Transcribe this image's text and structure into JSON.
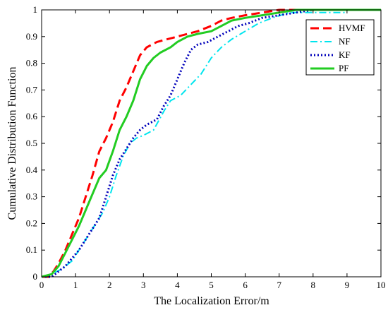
{
  "chart_data": {
    "type": "line",
    "title": "",
    "xlabel": "The Localization Error/m",
    "ylabel": "Cumulative Distribution Function",
    "xlim": [
      0,
      10
    ],
    "ylim": [
      0,
      1
    ],
    "xticks": [
      "0",
      "1",
      "2",
      "3",
      "4",
      "5",
      "6",
      "7",
      "8",
      "9",
      "10"
    ],
    "yticks": [
      "0",
      "0.1",
      "0.2",
      "0.3",
      "0.4",
      "0.5",
      "0.6",
      "0.7",
      "0.8",
      "0.9",
      "1"
    ],
    "grid": false,
    "legend": "top-right",
    "series": [
      {
        "name": "HVMF",
        "color": "#ff0000",
        "style": "dashed",
        "points": [
          [
            0,
            0
          ],
          [
            0.2,
            0
          ],
          [
            0.35,
            0.02
          ],
          [
            0.5,
            0.05
          ],
          [
            0.7,
            0.1
          ],
          [
            0.9,
            0.16
          ],
          [
            1.1,
            0.22
          ],
          [
            1.3,
            0.3
          ],
          [
            1.5,
            0.38
          ],
          [
            1.7,
            0.47
          ],
          [
            1.9,
            0.52
          ],
          [
            2.1,
            0.58
          ],
          [
            2.3,
            0.66
          ],
          [
            2.5,
            0.71
          ],
          [
            2.7,
            0.77
          ],
          [
            2.9,
            0.83
          ],
          [
            3.1,
            0.86
          ],
          [
            3.4,
            0.88
          ],
          [
            3.7,
            0.89
          ],
          [
            4.0,
            0.9
          ],
          [
            4.3,
            0.91
          ],
          [
            4.6,
            0.92
          ],
          [
            5.0,
            0.94
          ],
          [
            5.3,
            0.96
          ],
          [
            5.6,
            0.97
          ],
          [
            6.0,
            0.98
          ],
          [
            6.5,
            0.99
          ],
          [
            7.0,
            1.0
          ],
          [
            10,
            1.0
          ]
        ]
      },
      {
        "name": "NF",
        "color": "#00e5ee",
        "style": "dashdot",
        "points": [
          [
            0,
            0
          ],
          [
            0.3,
            0.01
          ],
          [
            0.6,
            0.03
          ],
          [
            0.9,
            0.06
          ],
          [
            1.2,
            0.12
          ],
          [
            1.5,
            0.18
          ],
          [
            1.8,
            0.24
          ],
          [
            2.0,
            0.3
          ],
          [
            2.2,
            0.38
          ],
          [
            2.4,
            0.45
          ],
          [
            2.6,
            0.5
          ],
          [
            2.8,
            0.52
          ],
          [
            3.0,
            0.53
          ],
          [
            3.3,
            0.55
          ],
          [
            3.6,
            0.62
          ],
          [
            3.8,
            0.66
          ],
          [
            4.1,
            0.68
          ],
          [
            4.4,
            0.72
          ],
          [
            4.7,
            0.76
          ],
          [
            5.0,
            0.82
          ],
          [
            5.3,
            0.86
          ],
          [
            5.6,
            0.89
          ],
          [
            6.0,
            0.92
          ],
          [
            6.4,
            0.95
          ],
          [
            6.8,
            0.97
          ],
          [
            7.3,
            0.99
          ],
          [
            8.0,
            0.99
          ],
          [
            9.0,
            0.99
          ]
        ]
      },
      {
        "name": "KF",
        "color": "#0000bb",
        "style": "dotted",
        "points": [
          [
            0,
            0
          ],
          [
            0.3,
            0
          ],
          [
            0.5,
            0.02
          ],
          [
            0.7,
            0.04
          ],
          [
            0.9,
            0.07
          ],
          [
            1.1,
            0.1
          ],
          [
            1.3,
            0.14
          ],
          [
            1.5,
            0.18
          ],
          [
            1.7,
            0.22
          ],
          [
            1.9,
            0.3
          ],
          [
            2.1,
            0.38
          ],
          [
            2.3,
            0.44
          ],
          [
            2.5,
            0.48
          ],
          [
            2.7,
            0.52
          ],
          [
            2.9,
            0.55
          ],
          [
            3.1,
            0.57
          ],
          [
            3.4,
            0.59
          ],
          [
            3.6,
            0.64
          ],
          [
            3.8,
            0.68
          ],
          [
            4.0,
            0.74
          ],
          [
            4.2,
            0.8
          ],
          [
            4.4,
            0.85
          ],
          [
            4.6,
            0.87
          ],
          [
            4.9,
            0.88
          ],
          [
            5.2,
            0.9
          ],
          [
            5.5,
            0.92
          ],
          [
            5.8,
            0.94
          ],
          [
            6.1,
            0.95
          ],
          [
            6.5,
            0.97
          ],
          [
            7.0,
            0.98
          ],
          [
            7.5,
            0.99
          ],
          [
            8.0,
            1.0
          ],
          [
            10,
            1.0
          ]
        ]
      },
      {
        "name": "PF",
        "color": "#22cc22",
        "style": "solid",
        "points": [
          [
            0,
            0
          ],
          [
            0.3,
            0.01
          ],
          [
            0.5,
            0.04
          ],
          [
            0.7,
            0.09
          ],
          [
            0.9,
            0.14
          ],
          [
            1.1,
            0.19
          ],
          [
            1.3,
            0.25
          ],
          [
            1.5,
            0.31
          ],
          [
            1.7,
            0.37
          ],
          [
            1.9,
            0.4
          ],
          [
            2.1,
            0.47
          ],
          [
            2.3,
            0.55
          ],
          [
            2.5,
            0.6
          ],
          [
            2.7,
            0.66
          ],
          [
            2.9,
            0.74
          ],
          [
            3.1,
            0.79
          ],
          [
            3.3,
            0.82
          ],
          [
            3.5,
            0.84
          ],
          [
            3.8,
            0.86
          ],
          [
            4.0,
            0.88
          ],
          [
            4.3,
            0.9
          ],
          [
            4.6,
            0.91
          ],
          [
            5.0,
            0.92
          ],
          [
            5.3,
            0.94
          ],
          [
            5.6,
            0.96
          ],
          [
            6.0,
            0.97
          ],
          [
            6.5,
            0.98
          ],
          [
            7.0,
            0.99
          ],
          [
            7.5,
            1.0
          ],
          [
            10,
            1.0
          ]
        ]
      }
    ]
  }
}
